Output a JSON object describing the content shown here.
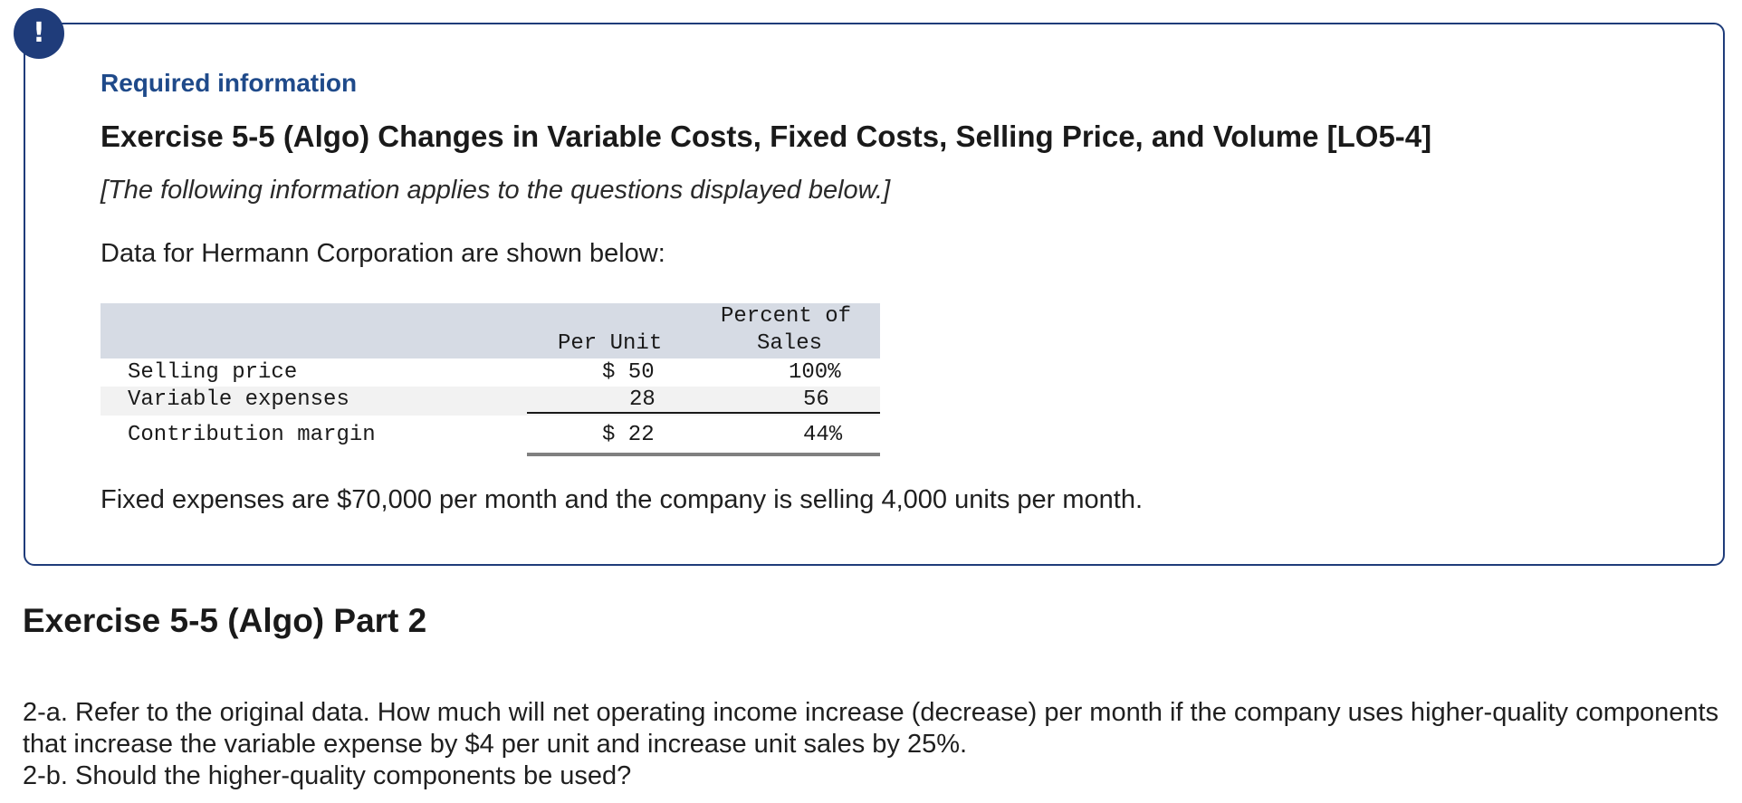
{
  "alert": {
    "symbol": "!"
  },
  "info": {
    "required_label": "Required information",
    "exercise_title": "Exercise 5-5 (Algo) Changes in Variable Costs, Fixed Costs, Selling Price, and Volume [LO5-4]",
    "applies_note": "[The following information applies to the questions displayed below.]",
    "intro": "Data for Hermann Corporation are shown below:",
    "table": {
      "headers": {
        "per_unit": "Per Unit",
        "percent_line1": "Percent of",
        "percent_line2": "Sales"
      },
      "rows": [
        {
          "label": "Selling price",
          "per_unit": "$ 50",
          "percent": "100%"
        },
        {
          "label": "Variable expenses",
          "per_unit": "28",
          "percent": "56"
        },
        {
          "label": "Contribution margin",
          "per_unit": "$ 22",
          "percent": "44%"
        }
      ]
    },
    "fixed_expenses_text": "Fixed expenses are $70,000 per month and the company is selling 4,000 units per month."
  },
  "part": {
    "title": "Exercise 5-5 (Algo) Part 2",
    "question_a": "2-a. Refer to the original data. How much will net operating income increase (decrease) per month if the company uses higher-quality components that increase the variable expense by $4 per unit and increase unit sales by 25%.",
    "question_b": "2-b. Should the higher-quality components be used?"
  }
}
